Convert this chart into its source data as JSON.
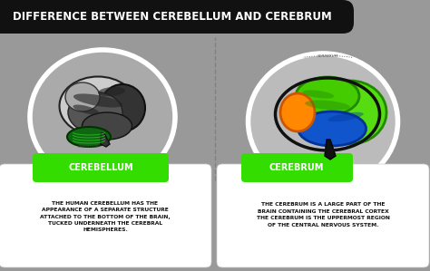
{
  "title": "DIFFERENCE BETWEEN CEREBELLUM AND CEREBRUM",
  "title_bg": "#111111",
  "title_color": "#ffffff",
  "bg_color": "#999999",
  "label1": "CEREBELLUM",
  "label2": "CEREBRUM",
  "label_bg": "#33dd00",
  "label_color": "#ffffff",
  "desc1": "THE HUMAN CEREBELLUM HAS THE\nAPPEARANCE OF A SEPARATE STRUCTURE\nATTACHED TO THE BOTTOM OF THE BRAIN,\nTUCKED UNDERNEATH THE CEREBRAL\nHEMISPHERES.",
  "desc2": "THE CEREBRUM IS A LARGE PART OF THE\nBRAIN CONTAINING THE CEREBRAL CORTEX\nTHE CEREBRUM IS THE UPPERMOST REGION\nOF THE CENTRAL NERVOUS SYSTEM.",
  "desc_color": "#111111",
  "card_bg": "#ffffff",
  "ellipse1_bg": "#aaaaaa",
  "ellipse2_bg": "#bbbbbb",
  "divider_color": "#777777",
  "cerebrum_label_color": "#666666",
  "cerebellum_label_color": "#666666"
}
